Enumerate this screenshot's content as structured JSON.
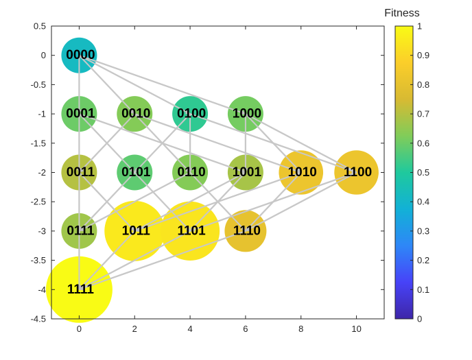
{
  "chart_data": {
    "type": "scatter",
    "title": "",
    "xlabel": "",
    "ylabel": "",
    "xlim": [
      -1,
      11
    ],
    "ylim": [
      -4.5,
      0.5
    ],
    "xticks": [
      "0",
      "2",
      "4",
      "6",
      "8",
      "10"
    ],
    "yticks": [
      "0.5",
      "0",
      "-0.5",
      "-1",
      "-1.5",
      "-2",
      "-2.5",
      "-3",
      "-3.5",
      "-4",
      "-4.5"
    ],
    "grid": false,
    "colorbar": {
      "title": "Fitness",
      "range": [
        0,
        1
      ],
      "ticks": [
        "0",
        "0.1",
        "0.2",
        "0.3",
        "0.4",
        "0.5",
        "0.6",
        "0.7",
        "0.8",
        "0.9",
        "1"
      ],
      "colormap": [
        "#3e26a8",
        "#4743f8",
        "#2e87f7",
        "#12b1d6",
        "#1fc99d",
        "#81cc59",
        "#d8ba32",
        "#fbce2a",
        "#f9fb15"
      ]
    },
    "nodes": [
      {
        "label": "0000",
        "x": 0,
        "y": 0,
        "fitness": 0.42
      },
      {
        "label": "0001",
        "x": 0,
        "y": -1,
        "fitness": 0.6
      },
      {
        "label": "0010",
        "x": 2,
        "y": -1,
        "fitness": 0.63
      },
      {
        "label": "0100",
        "x": 4,
        "y": -1,
        "fitness": 0.52
      },
      {
        "label": "1000",
        "x": 6,
        "y": -1,
        "fitness": 0.61
      },
      {
        "label": "0011",
        "x": 0,
        "y": -2,
        "fitness": 0.7
      },
      {
        "label": "0101",
        "x": 2,
        "y": -2,
        "fitness": 0.58
      },
      {
        "label": "0110",
        "x": 4,
        "y": -2,
        "fitness": 0.63
      },
      {
        "label": "1001",
        "x": 6,
        "y": -2,
        "fitness": 0.68
      },
      {
        "label": "1010",
        "x": 8,
        "y": -2,
        "fitness": 0.82
      },
      {
        "label": "1100",
        "x": 10,
        "y": -2,
        "fitness": 0.82
      },
      {
        "label": "0111",
        "x": 0,
        "y": -3,
        "fitness": 0.67
      },
      {
        "label": "1011",
        "x": 2,
        "y": -3,
        "fitness": 0.95
      },
      {
        "label": "1101",
        "x": 4,
        "y": -3,
        "fitness": 0.94
      },
      {
        "label": "1110",
        "x": 6,
        "y": -3,
        "fitness": 0.8
      },
      {
        "label": "1111",
        "x": 0,
        "y": -4,
        "fitness": 1.0
      }
    ],
    "edges": [
      [
        "0000",
        "0001"
      ],
      [
        "0000",
        "0010"
      ],
      [
        "0000",
        "0100"
      ],
      [
        "0000",
        "1000"
      ],
      [
        "0001",
        "0011"
      ],
      [
        "0001",
        "0101"
      ],
      [
        "0001",
        "1001"
      ],
      [
        "0010",
        "0011"
      ],
      [
        "0010",
        "0110"
      ],
      [
        "0010",
        "1010"
      ],
      [
        "0100",
        "0101"
      ],
      [
        "0100",
        "0110"
      ],
      [
        "0100",
        "1100"
      ],
      [
        "1000",
        "1001"
      ],
      [
        "1000",
        "1010"
      ],
      [
        "1000",
        "1100"
      ],
      [
        "0011",
        "0111"
      ],
      [
        "0011",
        "1011"
      ],
      [
        "0101",
        "0111"
      ],
      [
        "0101",
        "1101"
      ],
      [
        "0110",
        "0111"
      ],
      [
        "0110",
        "1110"
      ],
      [
        "1001",
        "1011"
      ],
      [
        "1001",
        "1101"
      ],
      [
        "1010",
        "1011"
      ],
      [
        "1010",
        "1110"
      ],
      [
        "1100",
        "1101"
      ],
      [
        "1100",
        "1110"
      ],
      [
        "0111",
        "1111"
      ],
      [
        "1011",
        "1111"
      ],
      [
        "1101",
        "1111"
      ],
      [
        "1110",
        "1111"
      ]
    ]
  }
}
